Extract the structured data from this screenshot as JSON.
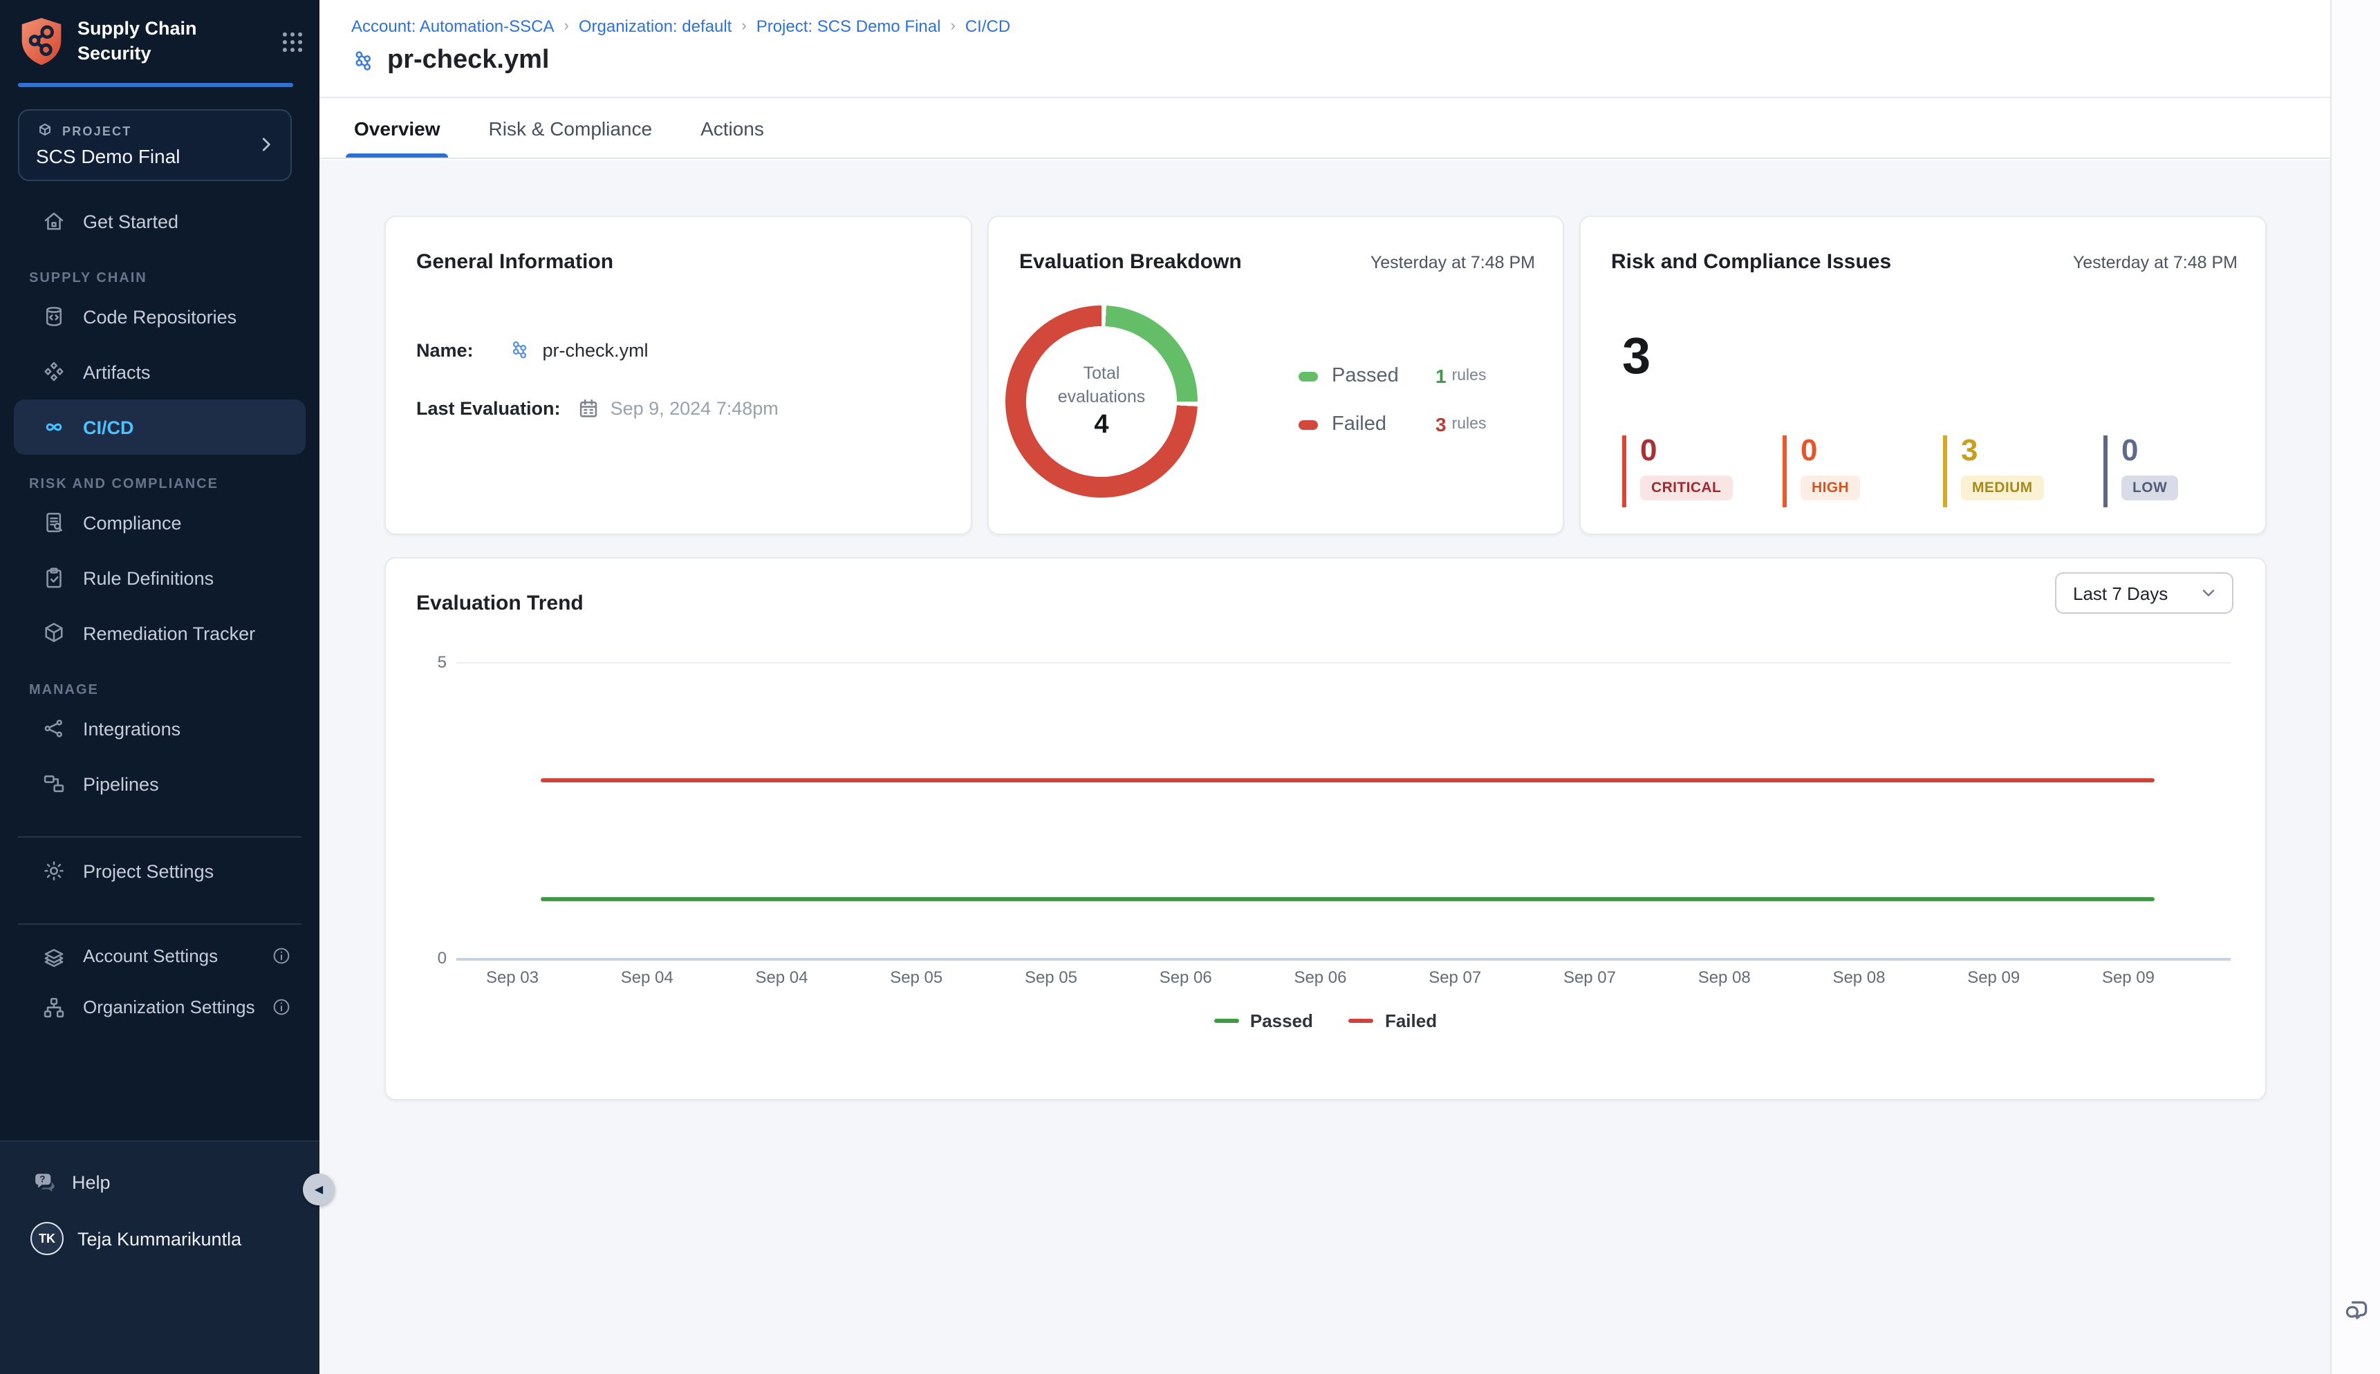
{
  "app": {
    "product_title": "Supply Chain Security"
  },
  "sidebar": {
    "project_selector": {
      "label": "PROJECT",
      "value": "SCS Demo Final"
    },
    "sections": [
      {
        "title": "",
        "items": [
          {
            "label": "Get Started",
            "icon": "home"
          }
        ]
      },
      {
        "title": "SUPPLY CHAIN",
        "items": [
          {
            "label": "Code Repositories",
            "icon": "repo"
          },
          {
            "label": "Artifacts",
            "icon": "artifacts"
          },
          {
            "label": "CI/CD",
            "icon": "infinity",
            "active": true
          }
        ]
      },
      {
        "title": "RISK AND COMPLIANCE",
        "items": [
          {
            "label": "Compliance",
            "icon": "compliance"
          },
          {
            "label": "Rule Definitions",
            "icon": "clipboard-check"
          },
          {
            "label": "Remediation Tracker",
            "icon": "box"
          }
        ]
      },
      {
        "title": "MANAGE",
        "items": [
          {
            "label": "Integrations",
            "icon": "integrations"
          },
          {
            "label": "Pipelines",
            "icon": "pipelines"
          }
        ]
      }
    ],
    "settings_primary": [
      {
        "label": "Project Settings",
        "icon": "gear"
      }
    ],
    "settings_secondary": [
      {
        "label": "Account Settings",
        "icon": "layers-gear",
        "info": true
      },
      {
        "label": "Organization Settings",
        "icon": "org-gear",
        "info": true
      }
    ],
    "footer": {
      "help_label": "Help",
      "user_name": "Teja Kummarikuntla",
      "user_initials": "TK"
    }
  },
  "breadcrumb": {
    "items": [
      "Account: Automation-SSCA",
      "Organization: default",
      "Project: SCS Demo Final",
      "CI/CD"
    ]
  },
  "page": {
    "title": "pr-check.yml"
  },
  "tabs": {
    "items": [
      "Overview",
      "Risk & Compliance",
      "Actions"
    ],
    "active": "Overview"
  },
  "cards": {
    "general": {
      "title": "General Information",
      "name_label": "Name:",
      "name_value": "pr-check.yml",
      "last_evaluation_label": "Last Evaluation:",
      "last_evaluation_value": "Sep 9, 2024 7:48pm"
    },
    "breakdown": {
      "title": "Evaluation Breakdown",
      "timestamp": "Yesterday at 7:48 PM",
      "center_line1": "Total",
      "center_line2": "evaluations",
      "total_value": "4"
    },
    "risk": {
      "title": "Risk and Compliance Issues",
      "timestamp": "Yesterday at 7:48 PM",
      "total_value": "3",
      "severities": [
        {
          "label": "CRITICAL",
          "count": "0",
          "bar": "#dc4531",
          "num": "#a93136",
          "badge_bg": "#f8e5e4",
          "badge_text": "#9e2a32"
        },
        {
          "label": "HIGH",
          "count": "0",
          "bar": "#ea5a28",
          "num": "#e4572a",
          "badge_bg": "#fdeee5",
          "badge_text": "#d9531f"
        },
        {
          "label": "MEDIUM",
          "count": "3",
          "bar": "#d8a91f",
          "num": "#c99e1b",
          "badge_bg": "#faf2d2",
          "badge_text": "#ab8a14"
        },
        {
          "label": "LOW",
          "count": "0",
          "bar": "#5d6885",
          "num": "#5f6b8b",
          "badge_bg": "#d9dce6",
          "badge_text": "#525d78"
        }
      ]
    },
    "trend": {
      "title": "Evaluation Trend",
      "range_selector": "Last 7 Days"
    }
  },
  "chart_data": [
    {
      "type": "donut",
      "title": "Evaluation Breakdown",
      "center_label": "Total evaluations",
      "total": 4,
      "slices": [
        {
          "label": "Passed",
          "value": 1,
          "color": "#64be68",
          "count_label": "1",
          "unit": "rules",
          "count_color": "#3f9a45"
        },
        {
          "label": "Failed",
          "value": 3,
          "color": "#d2493b",
          "count_label": "3",
          "unit": "rules",
          "count_color": "#c23a2e"
        }
      ],
      "legend_position": "right"
    },
    {
      "type": "line",
      "title": "Evaluation Trend",
      "x": [
        "Sep 03",
        "Sep 04",
        "Sep 04",
        "Sep 05",
        "Sep 05",
        "Sep 06",
        "Sep 06",
        "Sep 07",
        "Sep 07",
        "Sep 08",
        "Sep 08",
        "Sep 09",
        "Sep 09"
      ],
      "series": [
        {
          "name": "Passed",
          "color": "#3e9b43",
          "values": [
            1,
            1,
            1,
            1,
            1,
            1,
            1,
            1,
            1,
            1,
            1,
            1,
            1
          ]
        },
        {
          "name": "Failed",
          "color": "#d0433a",
          "values": [
            3,
            3,
            3,
            3,
            3,
            3,
            3,
            3,
            3,
            3,
            3,
            3,
            3
          ]
        }
      ],
      "ylim": [
        0,
        5
      ],
      "yticks": [
        5,
        0
      ],
      "grid": "top-gridline-only",
      "legend_position": "bottom-center"
    }
  ],
  "colors": {
    "accent_blue": "#2e6fd6",
    "link_blue": "#2e71d9",
    "sidebar_active_text": "#4cc3ff",
    "donut_green": "#64be68",
    "donut_red": "#d2493b"
  }
}
